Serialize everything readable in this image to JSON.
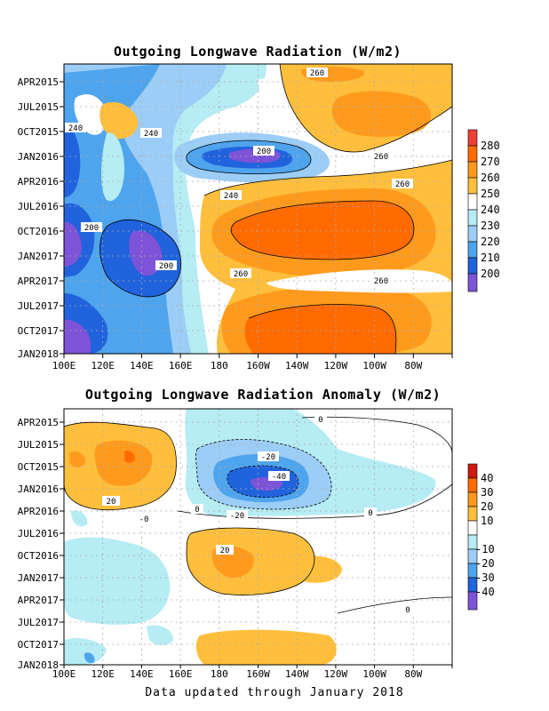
{
  "footer": "Data updated through January 2018",
  "chart_data": [
    {
      "type": "heatmap",
      "title": "Outgoing Longwave Radiation (W/m2)",
      "x_ticks": [
        "100E",
        "120E",
        "140E",
        "160E",
        "180",
        "160W",
        "140W",
        "120W",
        "100W",
        "80W"
      ],
      "y_ticks": [
        "APR2015",
        "JUL2015",
        "OCT2015",
        "JAN2016",
        "APR2016",
        "JUL2016",
        "OCT2016",
        "JAN2017",
        "APR2017",
        "JUL2017",
        "OCT2017",
        "JAN2018"
      ],
      "xlim": [
        "100E",
        "80W"
      ],
      "ylim": [
        "JAN2018",
        "FEB2015"
      ],
      "grid": true,
      "colorbar": {
        "labels": [
          "280",
          "270",
          "260",
          "250",
          "240",
          "230",
          "220",
          "210",
          "200"
        ],
        "colors": [
          "#ee3f34",
          "#ff6b00",
          "#ff9a1c",
          "#ffbf3c",
          "#ffffff",
          "#b6ecf4",
          "#9ccdf6",
          "#4ea4ed",
          "#2163dd",
          "#7d53d8"
        ]
      },
      "contour_labels": [
        "260",
        "240",
        "240",
        "200",
        "260",
        "260",
        "240",
        "200",
        "200",
        "260",
        "260"
      ],
      "regions": [
        {
          "name": "very-low-western-pacific",
          "value": 195
        },
        {
          "name": "low-jan2016-dateline",
          "value": 200
        },
        {
          "name": "high-central-pacific-2016",
          "value": 270
        },
        {
          "name": "high-central-pacific-2017",
          "value": 270
        }
      ]
    },
    {
      "type": "heatmap",
      "title": "Outgoing Longwave Radiation Anomaly (W/m2)",
      "x_ticks": [
        "100E",
        "120E",
        "140E",
        "160E",
        "180",
        "160W",
        "140W",
        "120W",
        "100W",
        "80W"
      ],
      "y_ticks": [
        "APR2015",
        "JUL2015",
        "OCT2015",
        "JAN2016",
        "APR2016",
        "JUL2016",
        "OCT2016",
        "JAN2017",
        "APR2017",
        "JUL2017",
        "OCT2017",
        "JAN2018"
      ],
      "xlim": [
        "100E",
        "80W"
      ],
      "ylim": [
        "JAN2018",
        "FEB2015"
      ],
      "grid": true,
      "colorbar": {
        "labels": [
          "40",
          "30",
          "20",
          "10",
          "-10",
          "-20",
          "-30",
          "-40"
        ],
        "colors": [
          "#ce1a10",
          "#ff6b00",
          "#ff9a1c",
          "#ffbf3c",
          "#ffffff",
          "#b6ecf4",
          "#9ccdf6",
          "#4ea4ed",
          "#2163dd",
          "#7d53d8"
        ]
      },
      "contour_labels": [
        "0",
        "-20",
        "-40",
        "20",
        "-0",
        "0",
        "-20",
        "0",
        "20",
        "0"
      ],
      "regions": [
        {
          "name": "negative-anomaly-2016",
          "value": -40
        },
        {
          "name": "positive-anomaly-2015",
          "value": 20
        },
        {
          "name": "positive-anomaly-2016",
          "value": 20
        },
        {
          "name": "negative-anomaly-2017",
          "value": -10
        }
      ]
    }
  ]
}
